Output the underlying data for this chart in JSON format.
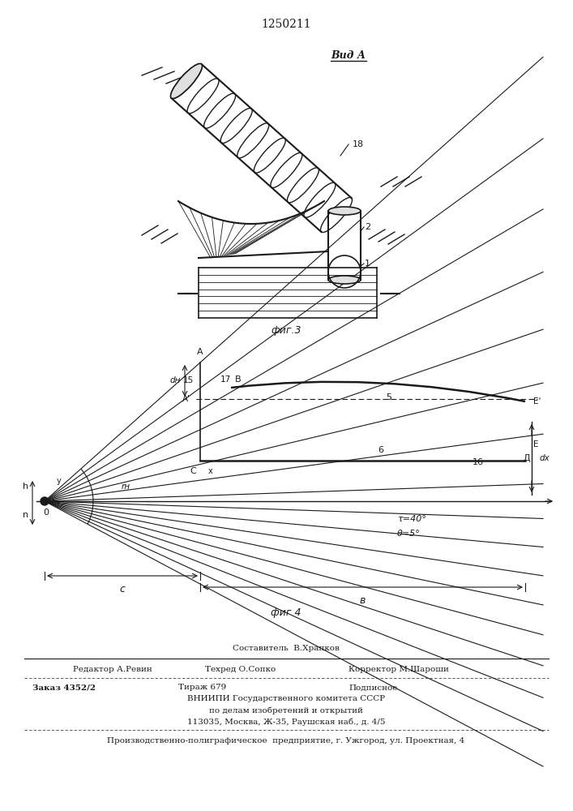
{
  "patent_number": "1250211",
  "vid_a_label": "Вид А",
  "fig3_label": "фиг.3",
  "fig4_label": "фиг 4",
  "footer_line1": "Составитель  В.Храпков",
  "footer_line2_left": "Редактор А.Ревин",
  "footer_line2_mid": "Техред О.Сопко",
  "footer_line2_right": "Корректор М.Шароши",
  "footer_line3_left": "Заказ 4352/2",
  "footer_line3_mid": "Тираж 679",
  "footer_line3_right": "Подписное",
  "footer_line4": "ВНИИПИ Государственного комитета СССР",
  "footer_line5": "по делам изобретений и открытий",
  "footer_line6": "113035, Москва, Ж-35, Раушская наб., д. 4/5",
  "footer_line7": "Производственно-полиграфическое  предприятие, г. Ужгород, ул. Проектная, 4",
  "bg_color": "#ffffff",
  "line_color": "#1a1a1a",
  "angle_tau": "τ=40°",
  "angle_theta": "θ=5°",
  "label_15": "15",
  "label_17": "17",
  "label_18": "18",
  "label_1": "1",
  "label_2": "2",
  "label_A": "A",
  "label_B": "B",
  "label_C": "C",
  "label_D": "Д",
  "label_E": "E",
  "label_Eprime": "E'",
  "label_5": "5",
  "label_6": "6",
  "label_16": "16",
  "label_dH": "dн",
  "label_dX": "dх",
  "label_rH": "rн",
  "label_h": "h",
  "label_n": "n",
  "label_c_dim": "c",
  "label_b_dim": "в",
  "label_Aprime": "A'",
  "label_O": "0",
  "label_x": "x",
  "label_y": "y"
}
